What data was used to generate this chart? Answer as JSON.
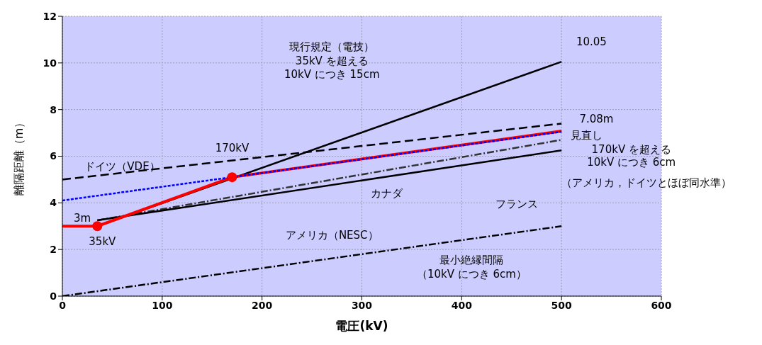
{
  "chart_data": {
    "type": "line",
    "xlabel": "電圧(kV)",
    "ylabel": "離隔距離（m）",
    "xlim": [
      0,
      600
    ],
    "xticks": [
      0,
      100,
      200,
      300,
      400,
      500,
      600
    ],
    "ylim": [
      0,
      12
    ],
    "yticks": [
      0,
      2,
      4,
      6,
      8,
      10,
      12
    ],
    "grid": true,
    "series": [
      {
        "color": "#000000",
        "x": [
          0,
          35,
          500
        ],
        "values": [
          3,
          3,
          10.05
        ],
        "line_style": "solid"
      },
      {
        "color": "#000000",
        "x": [
          0,
          500
        ],
        "values": [
          5,
          7.4
        ],
        "line_style": "dashed"
      },
      {
        "color": "#333333",
        "x": [
          35,
          500
        ],
        "values": [
          3.25,
          6.7
        ],
        "line_style": "dashdot"
      },
      {
        "color": "#000000",
        "x": [
          35,
          500
        ],
        "values": [
          3.25,
          6.25
        ],
        "line_style": "solid"
      },
      {
        "color": "#000000",
        "x": [
          0,
          500
        ],
        "values": [
          0,
          3
        ],
        "line_style": "dashdot"
      },
      {
        "color": "#ff0000",
        "x": [
          0,
          35,
          170,
          500
        ],
        "values": [
          3,
          3,
          5.1,
          7.08
        ],
        "line_style": "solid"
      },
      {
        "color": "#0000ff",
        "x": [
          0,
          500
        ],
        "values": [
          4.1,
          7.05
        ],
        "line_style": "dotted"
      },
      {
        "type": "scatter",
        "color": "#ff0000",
        "x": [
          35,
          170
        ],
        "values": [
          3,
          5.1
        ],
        "marker": "circle"
      }
    ],
    "annotations": [
      "現行規定（電技）",
      "35kV を超える",
      "10kV につき 15cm",
      "10.05",
      "7.08m",
      "見直し",
      "170kV を超える",
      "10kV につき 6cm",
      "（アメリカ，ドイツとほぼ同水準）",
      "170kV",
      "35kV",
      "3m",
      "ドイツ（VDE）",
      "アメリカ（NESC）",
      "カナダ",
      "フランス",
      "最小絶縁間隔",
      "（10kV につき 6cm）"
    ]
  }
}
